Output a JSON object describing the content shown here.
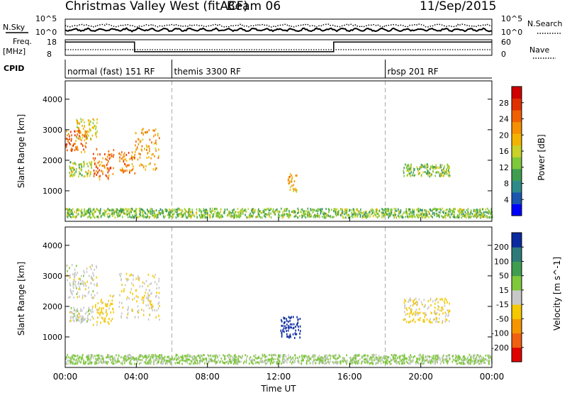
{
  "header": {
    "title": "Christmas Valley West (fitACF)",
    "beam": "Beam 06",
    "date": "11/Sep/2015"
  },
  "status": {
    "noise": {
      "left_label": "N.Sky",
      "right_label": "N.Search",
      "ticks": [
        "10^0",
        "10^5"
      ]
    },
    "freq": {
      "label_line1": "Freq.",
      "label_line2": "[MHz]",
      "ticks": [
        "8",
        "18"
      ],
      "series": [
        [
          0,
          16.5
        ],
        [
          3.9,
          16.5
        ],
        [
          3.9,
          10.3
        ],
        [
          15.1,
          10.3
        ],
        [
          15.1,
          16.5
        ],
        [
          24,
          16.5
        ]
      ]
    },
    "nave": {
      "label": "Nave",
      "ticks": [
        "0",
        "60"
      ]
    },
    "cpid": {
      "label": "CPID",
      "segments": [
        {
          "label": "normal (fast) 151 RF",
          "start": 0,
          "end": 6
        },
        {
          "label": "themis 3300 RF",
          "start": 6,
          "end": 18
        },
        {
          "label": "rbsp 201 RF",
          "start": 18,
          "end": 24
        }
      ]
    }
  },
  "chart_data": [
    {
      "type": "scatter",
      "title": "",
      "xlabel": "",
      "ylabel": "Slant Range [km]",
      "xlim": [
        0,
        24
      ],
      "ylim": [
        0,
        4600
      ],
      "yticks": [
        1000,
        2000,
        3000,
        4000
      ],
      "mode_boundaries": [
        6,
        18
      ],
      "colorbar": {
        "label": "Power [dB]",
        "ticks": [
          "4",
          "8",
          "12",
          "16",
          "20",
          "24",
          "28"
        ],
        "colors": [
          "#0000ff",
          "#1a56b0",
          "#2e8a8a",
          "#3f9d50",
          "#7ec83c",
          "#c8d228",
          "#f2b400",
          "#f59000",
          "#f06000",
          "#e03000",
          "#d00000"
        ]
      },
      "regions": [
        {
          "t": [
            0.0,
            1.2
          ],
          "r": [
            2300,
            3050
          ],
          "value": 24
        },
        {
          "t": [
            0.6,
            1.8
          ],
          "r": [
            2700,
            3400
          ],
          "value": 16
        },
        {
          "t": [
            0.2,
            1.5
          ],
          "r": [
            1500,
            2000
          ],
          "value": 14
        },
        {
          "t": [
            1.5,
            2.7
          ],
          "r": [
            1400,
            2400
          ],
          "value": 23
        },
        {
          "t": [
            3.0,
            3.9
          ],
          "r": [
            1600,
            2300
          ],
          "value": 22
        },
        {
          "t": [
            3.9,
            5.3
          ],
          "r": [
            1700,
            3100
          ],
          "value": 20
        },
        {
          "t": [
            12.5,
            13.0
          ],
          "r": [
            1000,
            1600
          ],
          "value": 19
        },
        {
          "t": [
            19.0,
            21.6
          ],
          "r": [
            1500,
            1900
          ],
          "value": 12
        },
        {
          "t": [
            0,
            24
          ],
          "r": [
            150,
            450
          ],
          "value": 12
        }
      ]
    },
    {
      "type": "scatter",
      "title": "",
      "xlabel": "Time UT",
      "ylabel": "Slant Range [km]",
      "xlim": [
        0,
        24
      ],
      "ylim": [
        0,
        4600
      ],
      "xticks": [
        "00:00",
        "04:00",
        "08:00",
        "12:00",
        "16:00",
        "20:00",
        "00:00"
      ],
      "yticks": [
        1000,
        2000,
        3000,
        4000
      ],
      "mode_boundaries": [
        6,
        18
      ],
      "colorbar": {
        "label": "Velocity [m s^-1]",
        "ticks": [
          "-200",
          "-100",
          "-50",
          "-15",
          "15",
          "50",
          "100",
          "200"
        ],
        "colors": [
          "#e00000",
          "#f06010",
          "#f59500",
          "#f5c800",
          "#c8c8c8",
          "#7ec83c",
          "#3f9d50",
          "#2e7a7a",
          "#0a2aa0"
        ]
      },
      "regions": [
        {
          "t": [
            0.0,
            1.8
          ],
          "r": [
            2300,
            3400
          ],
          "value": 0
        },
        {
          "t": [
            0.2,
            1.5
          ],
          "r": [
            1500,
            2000
          ],
          "value": 0
        },
        {
          "t": [
            1.5,
            2.7
          ],
          "r": [
            1400,
            2400
          ],
          "value": -30
        },
        {
          "t": [
            3.0,
            5.3
          ],
          "r": [
            1600,
            3100
          ],
          "value": -10
        },
        {
          "t": [
            12.0,
            13.2
          ],
          "r": [
            1000,
            1700
          ],
          "value": 220
        },
        {
          "t": [
            19.0,
            21.6
          ],
          "r": [
            1500,
            2300
          ],
          "value": -20
        },
        {
          "t": [
            0,
            24
          ],
          "r": [
            150,
            450
          ],
          "value": 20
        }
      ]
    }
  ]
}
